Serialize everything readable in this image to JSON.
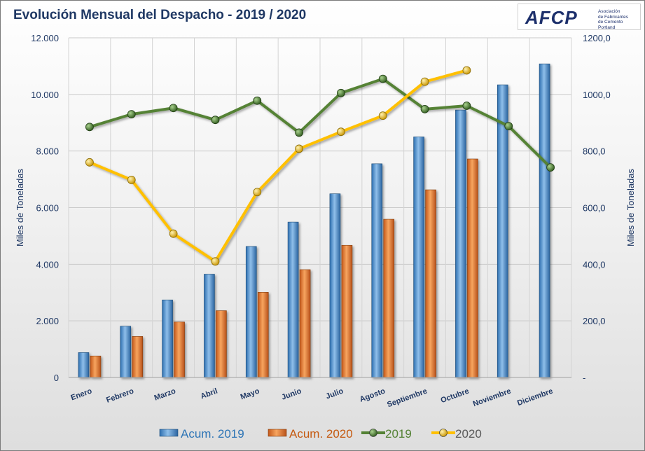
{
  "title": "Evolución Mensual del Despacho - 2019 / 2020",
  "logo": {
    "mark": "AFCP",
    "line1": "Asociación",
    "line2": "de Fabricantes",
    "line3": "de Cemento",
    "line4": "Portland"
  },
  "chart_data": {
    "type": "bar",
    "categories": [
      "Enero",
      "Febrero",
      "Marzo",
      "Abril",
      "Mayo",
      "Junio",
      "Julio",
      "Agosto",
      "Septiembre",
      "Octubre",
      "Noviembre",
      "Diciembre"
    ],
    "ylabel": "Miles de Toneladas",
    "y2label": "Miles de Toneladas",
    "ylim": [
      0,
      12000
    ],
    "y2lim": [
      0,
      1200
    ],
    "y_ticks": [
      "0",
      "2.000",
      "4.000",
      "6.000",
      "8.000",
      "10.000",
      "12.000"
    ],
    "y2_ticks": [
      "-",
      "200,0",
      "400,0",
      "600,0",
      "800,0",
      "1000,0",
      "1200,0"
    ],
    "grid": true,
    "legend_position": "bottom",
    "series": [
      {
        "name": "Acum. 2019",
        "kind": "bar",
        "axis": "left",
        "color": "#5b9bd5",
        "values": [
          880,
          1810,
          2740,
          3650,
          4630,
          5490,
          6490,
          7550,
          8500,
          9450,
          10340,
          11080
        ]
      },
      {
        "name": "Acum. 2020",
        "kind": "bar",
        "axis": "left",
        "color": "#ed7d31",
        "values": [
          760,
          1450,
          1960,
          2360,
          3010,
          3810,
          4670,
          5590,
          6630,
          7720,
          null,
          null
        ]
      },
      {
        "name": "2019",
        "kind": "line",
        "axis": "right",
        "color": "#548235",
        "values": [
          885,
          930,
          952,
          910,
          978,
          865,
          1005,
          1055,
          948,
          960,
          888,
          742
        ]
      },
      {
        "name": "2020",
        "kind": "line",
        "axis": "right",
        "color": "#ffc000",
        "values": [
          760,
          698,
          508,
          410,
          655,
          808,
          868,
          925,
          1045,
          1085,
          null,
          null
        ]
      }
    ]
  }
}
